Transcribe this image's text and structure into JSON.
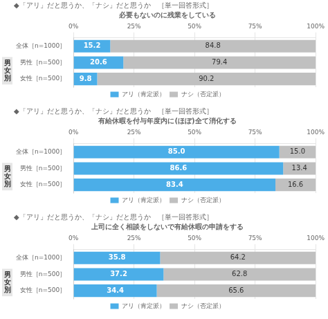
{
  "chart_data": [
    {
      "type": "bar",
      "orientation": "horizontal",
      "stacked": true,
      "data_labels": true,
      "grid": true,
      "legend": "bottom",
      "title": "◆「アリ」だと思うか、「ナシ」だと思うか　［単一回答形式］",
      "subtitle": "必要もないのに残業をしている",
      "annotation": "男\n女\n別",
      "categories": [
        "全体［n=1000］",
        "男性［n=500］",
        "女性［n=500］"
      ],
      "series": [
        {
          "name": "アリ（肯定派）",
          "color": "#4BAEE8",
          "values": [
            15.2,
            20.6,
            9.8
          ],
          "value_labels": [
            "15.2",
            "20.6",
            "9.8"
          ]
        },
        {
          "name": "ナシ（否定派）",
          "color": "#C0C0C0",
          "values": [
            84.8,
            79.4,
            90.2
          ],
          "value_labels": [
            "84.8",
            "79.4",
            "90.2"
          ]
        }
      ],
      "xlim": [
        0,
        100
      ],
      "xticks": [
        {
          "value": 0,
          "label": "0%"
        },
        {
          "value": 25,
          "label": "25%"
        },
        {
          "value": 50,
          "label": "50%"
        },
        {
          "value": 75,
          "label": "75%"
        },
        {
          "value": 100,
          "label": "100%"
        }
      ]
    },
    {
      "type": "bar",
      "orientation": "horizontal",
      "stacked": true,
      "data_labels": true,
      "grid": true,
      "legend": "bottom",
      "title": "◆「アリ」だと思うか、「ナシ」だと思うか　［単一回答形式］",
      "subtitle": "有給休暇を付与年度内に(ほぼ)全て消化する",
      "annotation": "男\n女\n別",
      "categories": [
        "全体［n=1000］",
        "男性［n=500］",
        "女性［n=500］"
      ],
      "series": [
        {
          "name": "アリ（肯定派）",
          "color": "#4BAEE8",
          "values": [
            85.0,
            86.6,
            83.4
          ],
          "value_labels": [
            "85.0",
            "86.6",
            "83.4"
          ]
        },
        {
          "name": "ナシ（否定派）",
          "color": "#C0C0C0",
          "values": [
            15.0,
            13.4,
            16.6
          ],
          "value_labels": [
            "15.0",
            "13.4",
            "16.6"
          ]
        }
      ],
      "xlim": [
        0,
        100
      ],
      "xticks": [
        {
          "value": 0,
          "label": "0%"
        },
        {
          "value": 25,
          "label": "25%"
        },
        {
          "value": 50,
          "label": "50%"
        },
        {
          "value": 75,
          "label": "75%"
        },
        {
          "value": 100,
          "label": "100%"
        }
      ]
    },
    {
      "type": "bar",
      "orientation": "horizontal",
      "stacked": true,
      "data_labels": true,
      "grid": true,
      "legend": "bottom",
      "title": "◆「アリ」だと思うか、「ナシ」だと思うか　［単一回答形式］",
      "subtitle": "上司に全く相談をしないで有給休暇の申請をする",
      "annotation": "男\n女\n別",
      "categories": [
        "全体［n=1000］",
        "男性［n=500］",
        "女性［n=500］"
      ],
      "series": [
        {
          "name": "アリ（肯定派）",
          "color": "#4BAEE8",
          "values": [
            35.8,
            37.2,
            34.4
          ],
          "value_labels": [
            "35.8",
            "37.2",
            "34.4"
          ]
        },
        {
          "name": "ナシ（否定派）",
          "color": "#C0C0C0",
          "values": [
            64.2,
            62.8,
            65.6
          ],
          "value_labels": [
            "64.2",
            "62.8",
            "65.6"
          ]
        }
      ],
      "xlim": [
        0,
        100
      ],
      "xticks": [
        {
          "value": 0,
          "label": "0%"
        },
        {
          "value": 25,
          "label": "25%"
        },
        {
          "value": 50,
          "label": "50%"
        },
        {
          "value": 75,
          "label": "75%"
        },
        {
          "value": 100,
          "label": "100%"
        }
      ]
    }
  ]
}
